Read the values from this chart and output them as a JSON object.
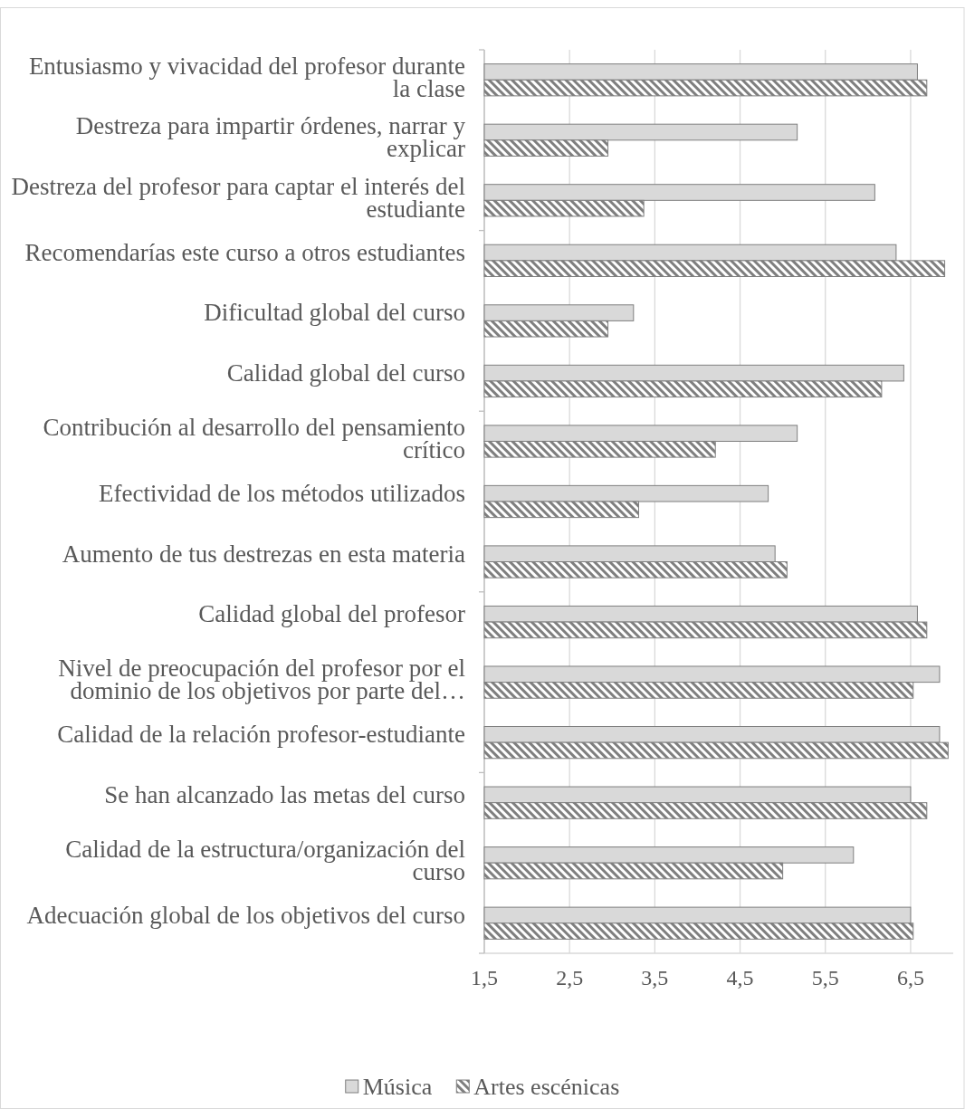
{
  "chart_data": {
    "type": "bar",
    "orientation": "horizontal",
    "categories": [
      "Entusiasmo y vivacidad del profesor durante la clase",
      "Destreza para impartir órdenes, narrar y explicar",
      "Destreza del profesor para captar el interés del estudiante",
      "Recomendarías este curso a otros estudiantes",
      "Dificultad global del curso",
      "Calidad global del curso",
      "Contribución al desarrollo del pensamiento crítico",
      "Efectividad de los métodos utilizados",
      "Aumento de tus destrezas en esta materia",
      "Calidad global del profesor",
      "Nivel de preocupación del profesor por el dominio de los objetivos por parte del…",
      "Calidad de la relación profesor-estudiante",
      "Se han alcanzado las metas del curso",
      "Calidad de la estructura/organización del curso",
      "Adecuación global de los objetivos del curso"
    ],
    "series": [
      {
        "name": "Música",
        "color": "#d9d9d9",
        "values": [
          6.58,
          5.17,
          6.08,
          6.33,
          3.25,
          6.42,
          5.17,
          4.83,
          4.91,
          6.58,
          6.84,
          6.84,
          6.5,
          5.83,
          6.5
        ]
      },
      {
        "name": "Artes escénicas",
        "color": "#7f7f7f",
        "values": [
          6.69,
          2.95,
          3.37,
          6.9,
          2.95,
          6.16,
          4.21,
          3.31,
          5.05,
          6.69,
          6.53,
          6.94,
          6.69,
          5.0,
          6.53
        ]
      }
    ],
    "xlim": [
      1.5,
      7
    ],
    "xticks": [
      {
        "value": 1.5,
        "label": "1,5"
      },
      {
        "value": 2.5,
        "label": "2,5"
      },
      {
        "value": 3.5,
        "label": "3,5"
      },
      {
        "value": 4.5,
        "label": "4,5"
      },
      {
        "value": 5.5,
        "label": "5,5"
      },
      {
        "value": 6.5,
        "label": "6,5"
      }
    ],
    "grid": "x",
    "legend": "bottom"
  }
}
